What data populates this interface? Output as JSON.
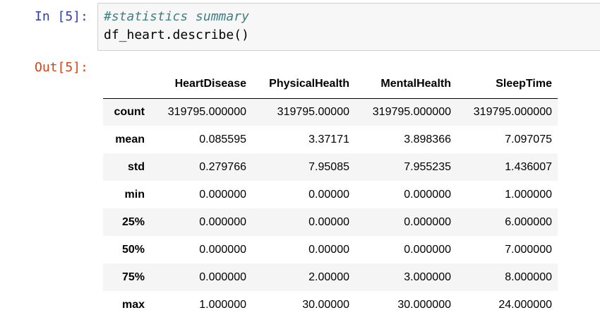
{
  "input_cell": {
    "prompt": "In [5]:",
    "code_lines": [
      "#statistics summary",
      "df_heart.describe()"
    ]
  },
  "output_cell": {
    "prompt": "Out[5]:",
    "table": {
      "columns": [
        "",
        "HeartDisease",
        "PhysicalHealth",
        "MentalHealth",
        "SleepTime"
      ],
      "rows": [
        {
          "label": "count",
          "values": [
            "319795.000000",
            "319795.00000",
            "319795.000000",
            "319795.000000"
          ]
        },
        {
          "label": "mean",
          "values": [
            "0.085595",
            "3.37171",
            "3.898366",
            "7.097075"
          ]
        },
        {
          "label": "std",
          "values": [
            "0.279766",
            "7.95085",
            "7.955235",
            "1.436007"
          ]
        },
        {
          "label": "min",
          "values": [
            "0.000000",
            "0.00000",
            "0.000000",
            "1.000000"
          ]
        },
        {
          "label": "25%",
          "values": [
            "0.000000",
            "0.00000",
            "0.000000",
            "6.000000"
          ]
        },
        {
          "label": "50%",
          "values": [
            "0.000000",
            "0.00000",
            "0.000000",
            "7.000000"
          ]
        },
        {
          "label": "75%",
          "values": [
            "0.000000",
            "2.00000",
            "3.000000",
            "8.000000"
          ]
        },
        {
          "label": "max",
          "values": [
            "1.000000",
            "30.00000",
            "30.000000",
            "24.000000"
          ]
        }
      ]
    }
  },
  "colors": {
    "in_prompt": "#303f9f",
    "out_prompt": "#d84315",
    "comment": "#408080",
    "cell_background": "#f7f7f7",
    "cell_border": "#cfcfcf",
    "row_stripe": "#f5f5f5"
  }
}
